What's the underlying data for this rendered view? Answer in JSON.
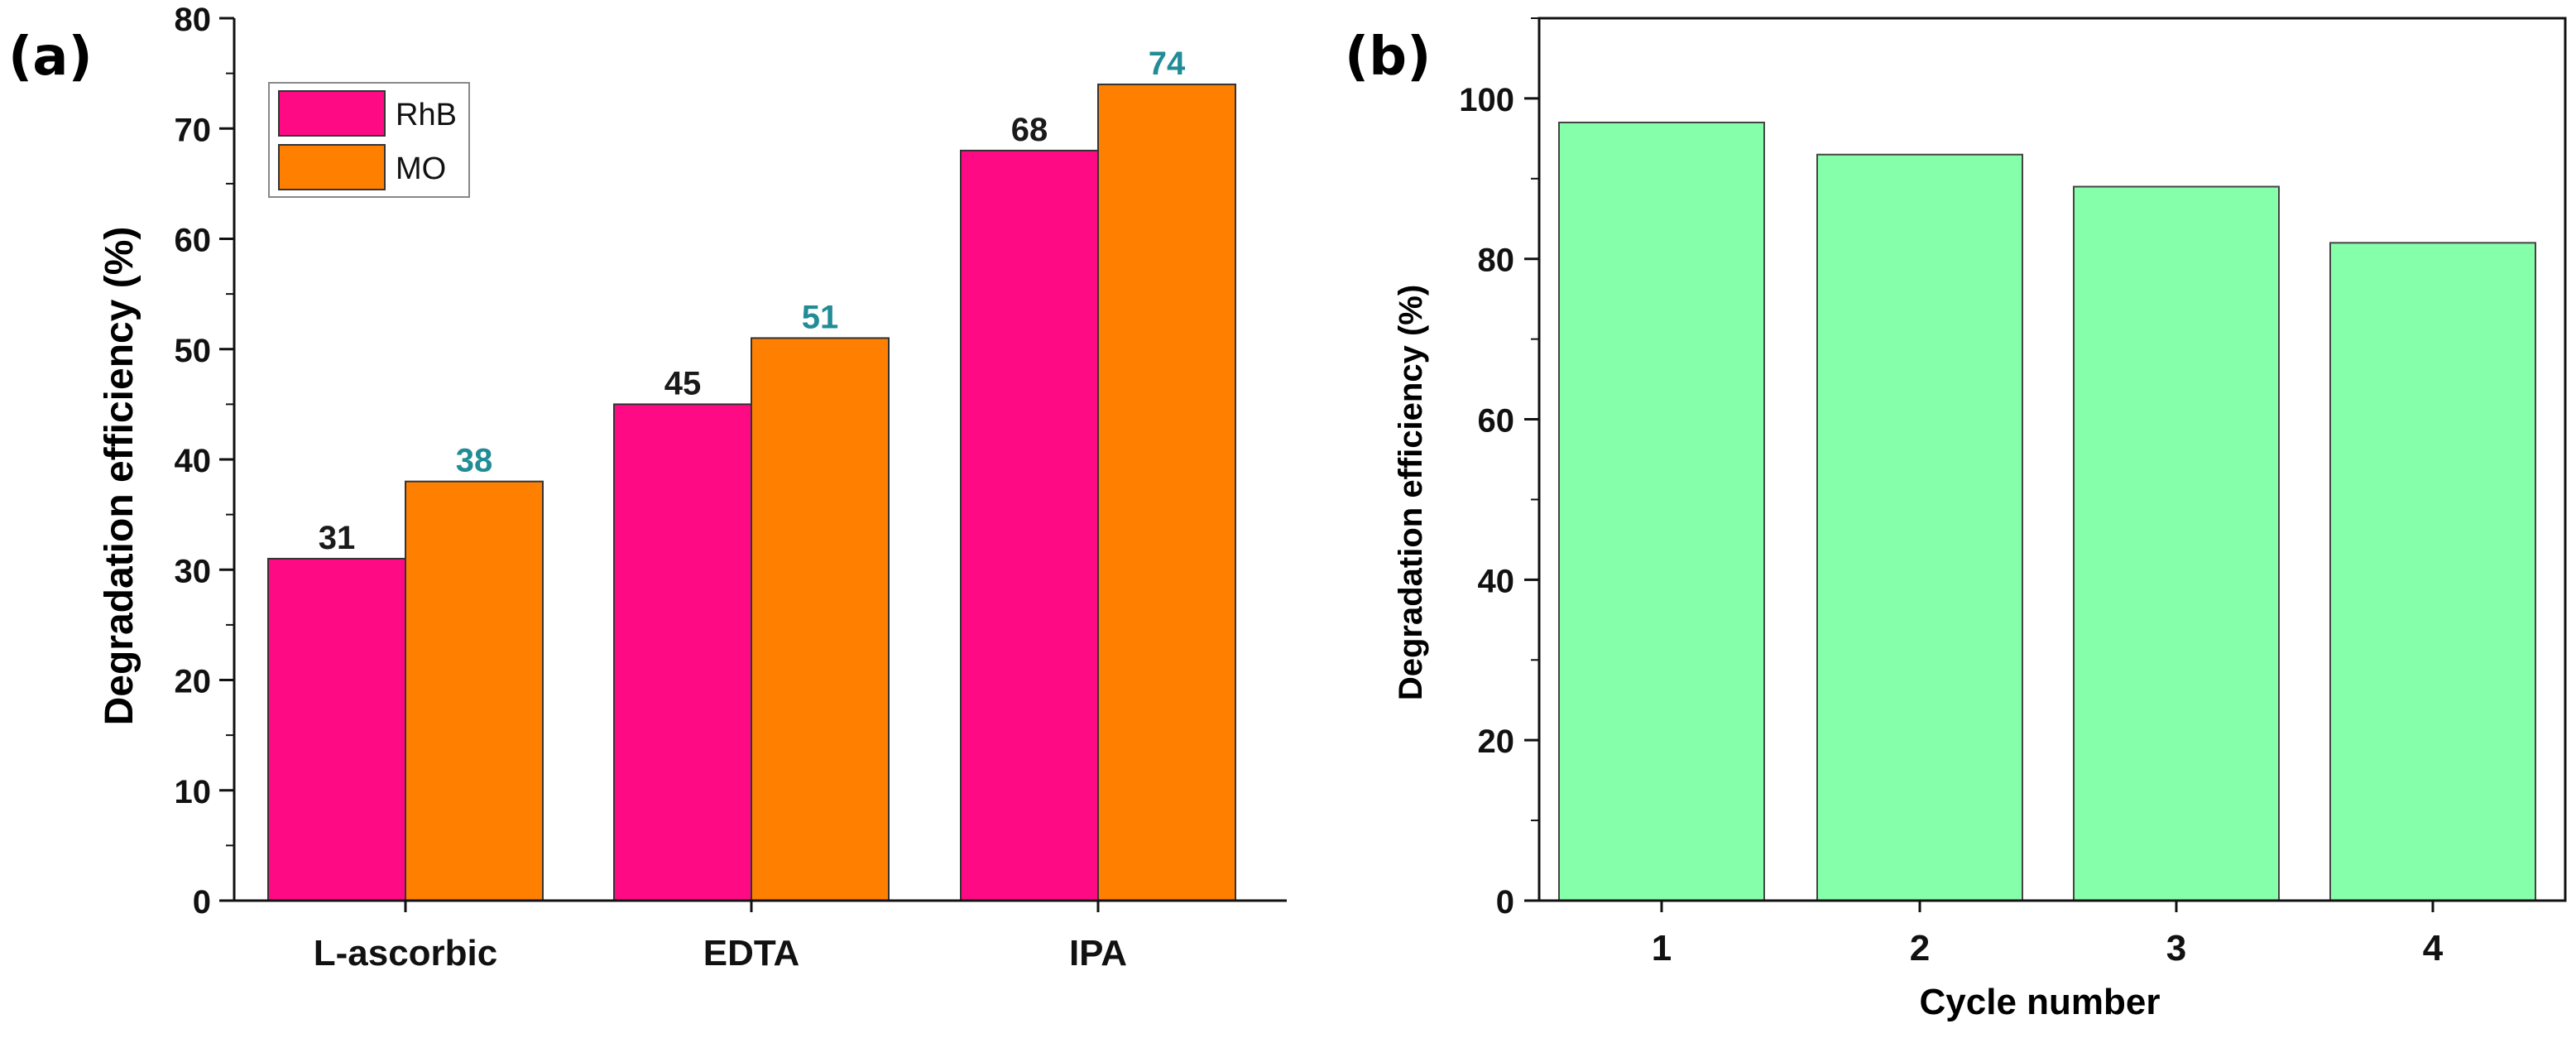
{
  "chart_data": [
    {
      "panel_label": "(a)",
      "type": "bar",
      "categories": [
        "L-ascorbic",
        "EDTA",
        "IPA"
      ],
      "series": [
        {
          "name": "RhB",
          "values": [
            31,
            45,
            68
          ],
          "color": "#ff0a85",
          "label_color": "#1a1a1a"
        },
        {
          "name": "MO",
          "values": [
            38,
            51,
            74
          ],
          "color": "#ff7f00",
          "label_color": "#218c96"
        }
      ],
      "data_labels": true,
      "xlabel": "",
      "ylabel": "Degradation efficiency (%)",
      "ylim": [
        0,
        80
      ],
      "yticks": [
        0,
        10,
        20,
        30,
        40,
        50,
        60,
        70,
        80
      ],
      "legend": "top-left",
      "grid": false
    },
    {
      "panel_label": "(b)",
      "type": "bar",
      "categories": [
        "1",
        "2",
        "3",
        "4"
      ],
      "series": [
        {
          "values": [
            97,
            93,
            89,
            82
          ],
          "color": "#86ffaa"
        }
      ],
      "data_labels": false,
      "xlabel": "Cycle number",
      "ylabel": "Degradation efficiency (%)",
      "ylim": [
        0,
        110
      ],
      "yticks": [
        0,
        20,
        40,
        60,
        80,
        100
      ],
      "legend": "none",
      "grid": false
    }
  ]
}
